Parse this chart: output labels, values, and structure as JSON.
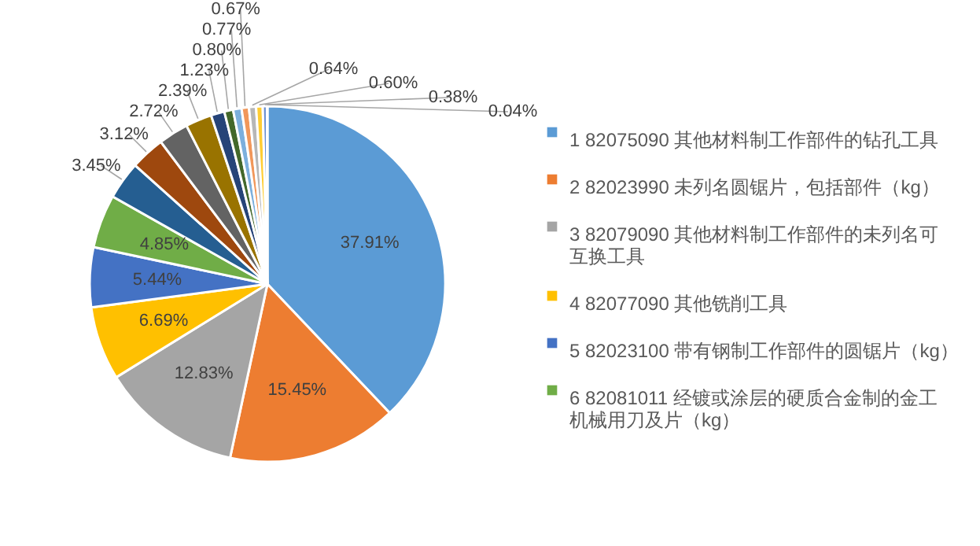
{
  "chart_data": {
    "type": "pie",
    "categories": [
      "1 82075090 其他材料制工作部件的钻孔工具",
      "2 82023990 未列名圆锯片，包括部件（kg）",
      "3 82079090 其他材料制工作部件的未列名可互换工具",
      "4 82077090 其他铣削工具",
      "5 82023100 带有钢制工作部件的圆锯片（kg）",
      "6 82081011 经镀或涂层的硬质合金制的金工机械用刀及片（kg）",
      null,
      null,
      null,
      null,
      null,
      null,
      null,
      null,
      null,
      null,
      null,
      null
    ],
    "values": [
      37.91,
      15.45,
      12.83,
      6.69,
      5.44,
      4.85,
      3.45,
      3.12,
      2.72,
      2.39,
      1.23,
      0.8,
      0.77,
      0.67,
      0.64,
      0.6,
      0.38,
      0.04
    ],
    "value_labels": [
      "37.91%",
      "15.45%",
      "12.83%",
      "6.69%",
      "5.44%",
      "4.85%",
      "3.45%",
      "3.12%",
      "2.72%",
      "2.39%",
      "1.23%",
      "0.80%",
      "0.77%",
      "0.67%",
      "0.64%",
      "0.60%",
      "0.38%",
      "0.04%"
    ],
    "colors": [
      "#5b9bd5",
      "#ed7d31",
      "#a5a5a5",
      "#ffc000",
      "#4472c4",
      "#70ad47",
      "#255e91",
      "#9e480e",
      "#636363",
      "#997300",
      "#264478",
      "#43682b",
      "#7cafdd",
      "#f1975a",
      "#b7b7b7",
      "#ffcd33",
      "#698ed0",
      "#8cc168"
    ],
    "legend": "right"
  }
}
